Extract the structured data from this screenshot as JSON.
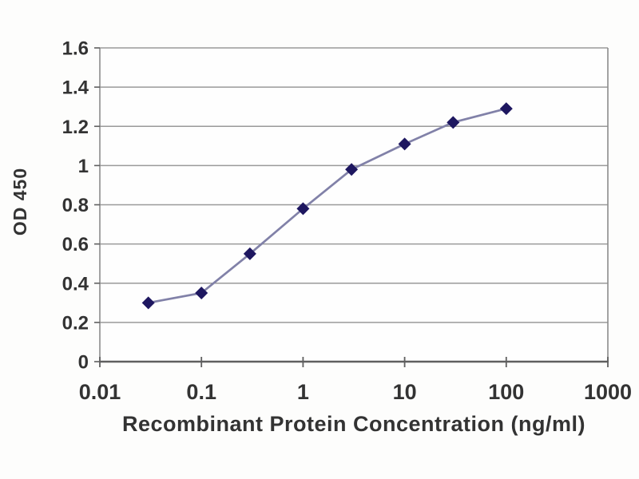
{
  "chart_data": {
    "type": "line",
    "title": "",
    "xlabel": "Recombinant Protein Concentration (ng/ml)",
    "ylabel": "OD 450",
    "x_scale": "log",
    "xlim": [
      0.01,
      1000
    ],
    "ylim": [
      0,
      1.6
    ],
    "grid": "horizontal",
    "legend": "none",
    "x_tick_labels": [
      "0.01",
      "0.1",
      "1",
      "10",
      "100",
      "1000"
    ],
    "x_tick_values": [
      0.01,
      0.1,
      1,
      10,
      100,
      1000
    ],
    "y_tick_labels": [
      "0",
      "0.2",
      "0.4",
      "0.6",
      "0.8",
      "1",
      "1.2",
      "1.4",
      "1.6"
    ],
    "y_tick_values": [
      0,
      0.2,
      0.4,
      0.6,
      0.8,
      1.0,
      1.2,
      1.4,
      1.6
    ],
    "series": [
      {
        "name": "OD 450",
        "marker": "diamond",
        "x": [
          0.03,
          0.1,
          0.3,
          1,
          3,
          10,
          30,
          100
        ],
        "y": [
          0.3,
          0.35,
          0.55,
          0.78,
          0.98,
          1.11,
          1.22,
          1.29
        ]
      }
    ]
  },
  "colors": {
    "background": "#fdfdfc",
    "plot_background": "#fefefe",
    "gridline": "#9a9a9a",
    "axis_line": "#5f5f5f",
    "plot_border": "#8c8c8c",
    "tick_text": "#333333",
    "series_line": "#8181a8",
    "marker_fill": "#1e1760"
  }
}
